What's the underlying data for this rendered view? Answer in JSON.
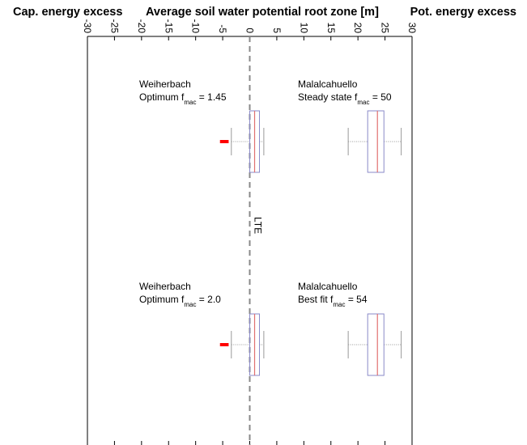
{
  "headers": {
    "left": "Cap. energy excess",
    "center": "Average soil water potential root zone [m]",
    "right": "Pot. energy excess"
  },
  "reference_label": "LTE",
  "chart_data": {
    "type": "boxplot",
    "orientation": "horizontal",
    "title": "Average soil water potential root zone [m]",
    "xlim": [
      -30,
      30
    ],
    "x_ticks": [
      -30,
      -25,
      -20,
      -15,
      -10,
      -5,
      0,
      5,
      10,
      15,
      20,
      25,
      30
    ],
    "x_tick_labels": [
      "-30",
      "-25",
      "-20",
      "-15",
      "-10",
      "-5",
      "0",
      "5",
      "10",
      "15",
      "20",
      "25",
      "30"
    ],
    "reference_line": {
      "x": 0,
      "label": "LTE"
    },
    "panels": [
      {
        "boxes": [
          {
            "site": "Weiherbach",
            "label_prefix": "Optimum  f",
            "label_sub": "mac",
            "label_suffix": " = 1.45",
            "whisker_low": -3.4,
            "q1": 0.0,
            "median": 0.9,
            "q3": 1.8,
            "whisker_high": 2.6,
            "outlier_low": -5.5,
            "outlier_high": -3.9
          },
          {
            "site": "Malalcahuello",
            "label_prefix": "Steady state f",
            "label_sub": "mac",
            "label_suffix": " = 50",
            "whisker_low": 18.2,
            "q1": 21.8,
            "median": 23.6,
            "q3": 24.8,
            "whisker_high": 28.0
          }
        ]
      },
      {
        "boxes": [
          {
            "site": "Weiherbach",
            "label_prefix": "Optimum f",
            "label_sub": "mac",
            "label_suffix": " = 2.0",
            "whisker_low": -3.4,
            "q1": 0.0,
            "median": 0.9,
            "q3": 1.8,
            "whisker_high": 2.6,
            "outlier_low": -5.5,
            "outlier_high": -3.9
          },
          {
            "site": "Malalcahuello",
            "label_prefix": "Best fit f",
            "label_sub": "mac",
            "label_suffix": " = 54",
            "whisker_low": 18.2,
            "q1": 21.8,
            "median": 23.6,
            "q3": 24.8,
            "whisker_high": 28.0
          }
        ]
      }
    ],
    "colors": {
      "box_edge": "#8a8ac8",
      "median": "#e07070",
      "whisker": "#999999",
      "outlier": "#ff0000",
      "reference_line": "#888888"
    }
  }
}
